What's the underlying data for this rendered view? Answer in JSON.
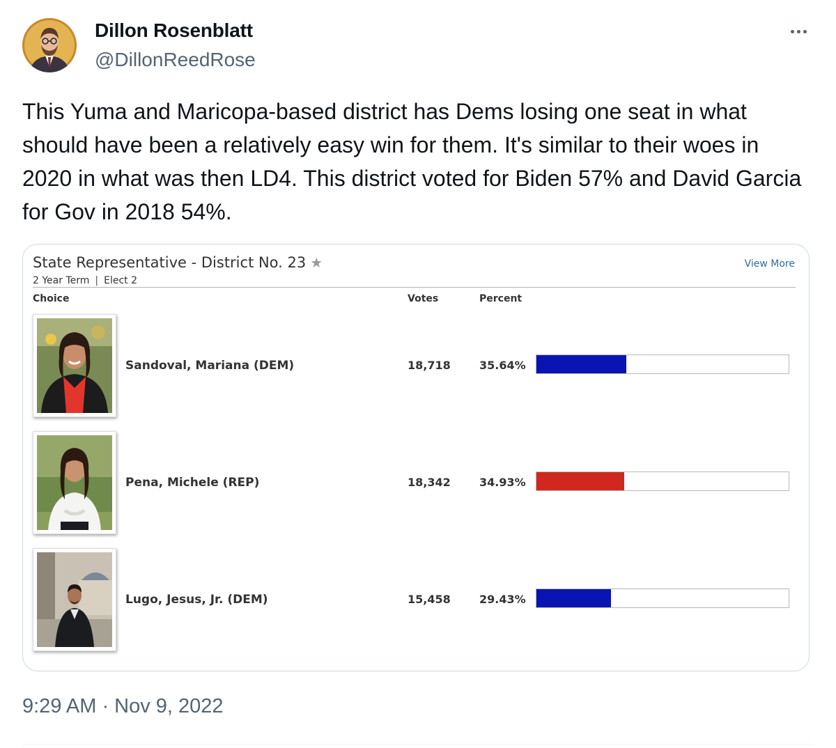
{
  "author": {
    "display_name": "Dillon Rosenblatt",
    "handle": "@DillonReedRose"
  },
  "tweet": {
    "text": "This Yuma and Maricopa-based district has Dems losing one seat in what should have been a relatively easy win for them. It's similar to their woes in 2020 in what was then LD4. This district voted for Biden 57% and David Garcia for Gov in 2018 54%.",
    "timestamp": "9:29 AM · Nov 9, 2022"
  },
  "media": {
    "race_title": "State Representative - District No. 23",
    "term": "2 Year Term",
    "elect": "Elect 2",
    "view_more": "View More",
    "columns": {
      "choice": "Choice",
      "votes": "Votes",
      "percent": "Percent"
    },
    "candidates": [
      {
        "name": "Sandoval, Mariana (DEM)",
        "votes": "18,718",
        "percent": "35.64%",
        "share": 35.64,
        "color": "#0a14b4"
      },
      {
        "name": "Pena, Michele (REP)",
        "votes": "18,342",
        "percent": "34.93%",
        "share": 34.93,
        "color": "#d0281e"
      },
      {
        "name": "Lugo, Jesus, Jr. (DEM)",
        "votes": "15,458",
        "percent": "29.43%",
        "share": 29.43,
        "color": "#0a14b4"
      }
    ]
  },
  "icons": {
    "more": "more-horizontal-icon",
    "favorite": "star-icon"
  }
}
